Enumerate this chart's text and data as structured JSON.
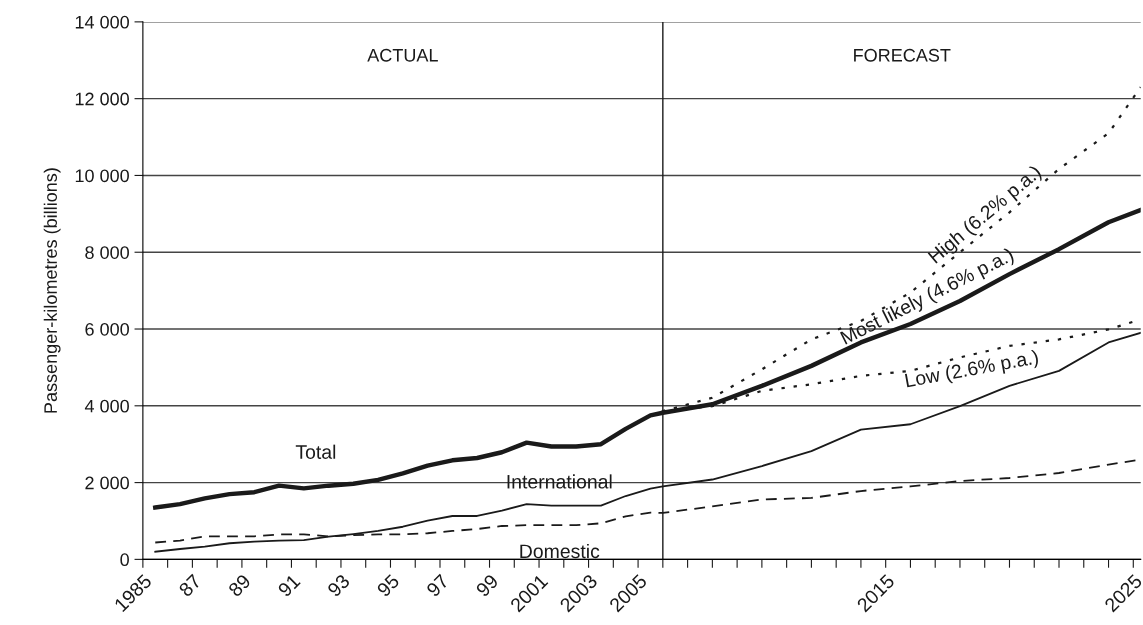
{
  "chart_data": {
    "type": "line",
    "ylabel": "Passenger-kilometres (billions)",
    "xlim": [
      1985,
      2025.3
    ],
    "ylim": [
      0,
      14000
    ],
    "xticks": [
      {
        "value": 1985,
        "label": "1985"
      },
      {
        "value": 1986,
        "label": null
      },
      {
        "value": 1987,
        "label": "87"
      },
      {
        "value": 1988,
        "label": null
      },
      {
        "value": 1989,
        "label": "89"
      },
      {
        "value": 1990,
        "label": null
      },
      {
        "value": 1991,
        "label": "91"
      },
      {
        "value": 1992,
        "label": null
      },
      {
        "value": 1993,
        "label": "93"
      },
      {
        "value": 1994,
        "label": null
      },
      {
        "value": 1995,
        "label": "95"
      },
      {
        "value": 1996,
        "label": null
      },
      {
        "value": 1997,
        "label": "97"
      },
      {
        "value": 1998,
        "label": null
      },
      {
        "value": 1999,
        "label": "99"
      },
      {
        "value": 2000,
        "label": null
      },
      {
        "value": 2001,
        "label": "2001"
      },
      {
        "value": 2002,
        "label": null
      },
      {
        "value": 2003,
        "label": "2003"
      },
      {
        "value": 2004,
        "label": null
      },
      {
        "value": 2005,
        "label": "2005"
      },
      {
        "value": 2006,
        "label": null
      },
      {
        "value": 2007,
        "label": null
      },
      {
        "value": 2008,
        "label": null
      },
      {
        "value": 2009,
        "label": null
      },
      {
        "value": 2010,
        "label": null
      },
      {
        "value": 2011,
        "label": null
      },
      {
        "value": 2012,
        "label": null
      },
      {
        "value": 2013,
        "label": null
      },
      {
        "value": 2014,
        "label": null
      },
      {
        "value": 2015,
        "label": "2015"
      },
      {
        "value": 2016,
        "label": null
      },
      {
        "value": 2017,
        "label": null
      },
      {
        "value": 2018,
        "label": null
      },
      {
        "value": 2019,
        "label": null
      },
      {
        "value": 2020,
        "label": null
      },
      {
        "value": 2021,
        "label": null
      },
      {
        "value": 2022,
        "label": null
      },
      {
        "value": 2023,
        "label": null
      },
      {
        "value": 2024,
        "label": null
      },
      {
        "value": 2025,
        "label": "2025"
      }
    ],
    "yticks": [
      0,
      {
        "value": 2000,
        "label": "2 000"
      },
      {
        "value": 4000,
        "label": "4 000"
      },
      {
        "value": 6000,
        "label": "6 000"
      },
      {
        "value": 8000,
        "label": "8 000"
      },
      {
        "value": 10000,
        "label": "10 000"
      },
      {
        "value": 12000,
        "label": "12 000"
      },
      {
        "value": 14000,
        "label": "14 000"
      }
    ],
    "grid": "y",
    "marker": "none",
    "ref_lines": [
      {
        "axis": "x",
        "value": 2006,
        "color": "#1a1a1a"
      }
    ],
    "annotations": [
      "ACTUAL",
      "FORECAST",
      {
        "text": "Most likely (4.6% p.a.)",
        "x": 2017,
        "y": 6430
      }
    ],
    "series": [
      {
        "name": "Total",
        "color": "#1a1a1a",
        "line_style": "solid",
        "x": [
          1985.5,
          1986.5,
          1987.5,
          1988.5,
          1989.5,
          1990.5,
          1991.5,
          1992.5,
          1993.5,
          1994.5,
          1995.5,
          1996.5,
          1997.5,
          1998.5,
          1999.5,
          2000.5,
          2001.5,
          2002.5,
          2003.5,
          2004.5,
          2005.5,
          2006,
          2008,
          2010,
          2012,
          2014,
          2016,
          2018,
          2020,
          2022,
          2024,
          2025.3
        ],
        "values": [
          1350,
          1440,
          1590,
          1700,
          1750,
          1920,
          1850,
          1920,
          1970,
          2070,
          2240,
          2440,
          2580,
          2640,
          2790,
          3040,
          2940,
          2940,
          3000,
          3400,
          3750,
          3820,
          4040,
          4520,
          5040,
          5650,
          6130,
          6730,
          7430,
          8080,
          8780,
          9100
        ]
      },
      {
        "name": "International",
        "color": "#1a1a1a",
        "line_style": "solid",
        "x": [
          1985.5,
          1986.5,
          1987.5,
          1988.5,
          1989.5,
          1990.5,
          1991.5,
          1992.5,
          1993.5,
          1994.5,
          1995.5,
          1996.5,
          1997.5,
          1998.5,
          1999.5,
          2000.5,
          2001.5,
          2002.5,
          2003.5,
          2004.5,
          2005.5,
          2006,
          2008,
          2010,
          2012,
          2014,
          2016,
          2018,
          2020,
          2022,
          2024,
          2025.3
        ],
        "values": [
          200,
          270,
          330,
          420,
          460,
          490,
          500,
          590,
          660,
          740,
          850,
          1010,
          1130,
          1130,
          1270,
          1440,
          1400,
          1400,
          1400,
          1650,
          1840,
          1900,
          2080,
          2430,
          2820,
          3380,
          3520,
          3990,
          4520,
          4910,
          5650,
          5900
        ]
      },
      {
        "name": "Domestic",
        "color": "#1a1a1a",
        "line_style": "dashed",
        "x": [
          1985.5,
          1986.5,
          1987.5,
          1988.5,
          1989.5,
          1990.5,
          1991.5,
          1992.5,
          1993.5,
          1994.5,
          1995.5,
          1996.5,
          1997.5,
          1998.5,
          1999.5,
          2000.5,
          2001.5,
          2002.5,
          2003.5,
          2004.5,
          2005.5,
          2006,
          2008,
          2010,
          2012,
          2014,
          2016,
          2018,
          2020,
          2022,
          2024,
          2025.3
        ],
        "values": [
          440,
          490,
          600,
          600,
          600,
          650,
          650,
          600,
          630,
          650,
          650,
          680,
          740,
          790,
          870,
          890,
          890,
          890,
          940,
          1120,
          1220,
          1210,
          1380,
          1560,
          1600,
          1780,
          1900,
          2040,
          2120,
          2250,
          2470,
          2600
        ]
      },
      {
        "name": "High (6.2% p.a.)",
        "color": "#1a1a1a",
        "line_style": "dotted",
        "x": [
          2005.5,
          2006,
          2008,
          2010,
          2012,
          2014,
          2016,
          2018,
          2020,
          2022,
          2024,
          2025.3
        ],
        "values": [
          3750,
          3860,
          4210,
          4950,
          5730,
          6210,
          6950,
          8000,
          9040,
          10170,
          11100,
          12300
        ]
      },
      {
        "name": "Low (2.6% p.a.)",
        "color": "#1a1a1a",
        "line_style": "dotted",
        "x": [
          2005.5,
          2006,
          2008,
          2010,
          2012,
          2014,
          2016,
          2018,
          2020,
          2022,
          2024,
          2025.3
        ],
        "values": [
          3750,
          3860,
          3990,
          4390,
          4560,
          4780,
          4910,
          5260,
          5560,
          5730,
          5990,
          6250
        ]
      }
    ]
  }
}
